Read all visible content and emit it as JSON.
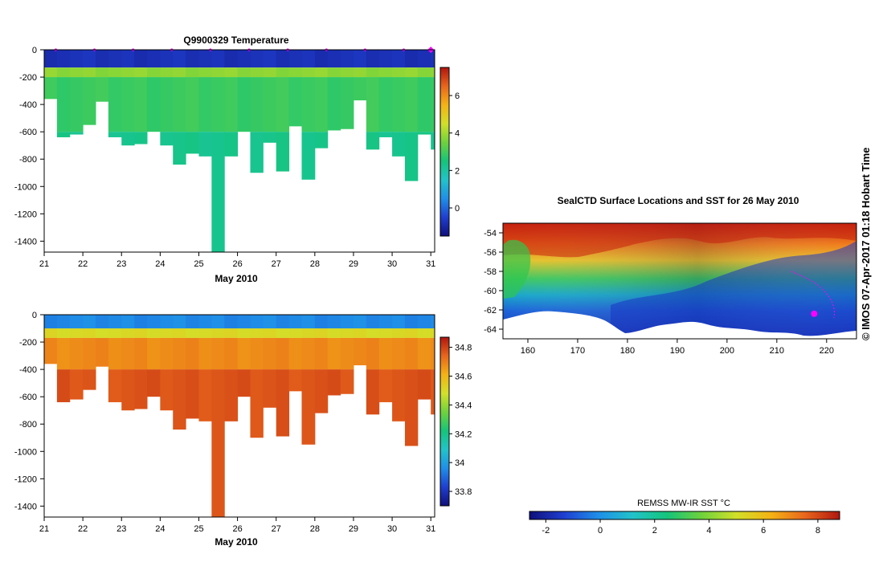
{
  "credit": "©  IMOS 07-Apr-2017 01:18 Hobart Time",
  "colors": {
    "temp_scale": [
      "#10107a",
      "#1f3fd0",
      "#1f8fe8",
      "#22c3c9",
      "#15c47a",
      "#6fd23c",
      "#d2e029",
      "#f4b315",
      "#e8661c",
      "#b0160f"
    ],
    "sal_scale": [
      "#10107a",
      "#1f3fd0",
      "#1f8fe8",
      "#22c3c9",
      "#15c47a",
      "#6fd23c",
      "#d2e029",
      "#f4b315",
      "#e8661c",
      "#b0160f"
    ],
    "surface_marker": "#ff00ff"
  },
  "chart_data": [
    {
      "id": "temperature",
      "type": "heatmap",
      "title": "Q9900329  Temperature",
      "xlabel": "May 2010",
      "ylabel": "",
      "x_ticks": [
        "21",
        "22",
        "23",
        "24",
        "25",
        "26",
        "27",
        "28",
        "29",
        "30",
        "31"
      ],
      "y_ticks": [
        "0",
        "-200",
        "-400",
        "-600",
        "-800",
        "-1000",
        "-1200",
        "-1400"
      ],
      "xlim": [
        21,
        31.1
      ],
      "ylim": [
        -1480,
        0
      ],
      "colorbar_ticks": [
        "0",
        "2",
        "4",
        "6"
      ],
      "colorbar_range": [
        -1.5,
        7.5
      ],
      "profile_times": [
        21,
        21.33,
        21.66,
        22,
        22.33,
        22.66,
        23,
        23.33,
        23.66,
        24,
        24.33,
        24.66,
        25,
        25.33,
        25.66,
        26,
        26.33,
        26.66,
        27,
        27.33,
        27.66,
        28,
        28.33,
        28.66,
        29,
        29.33,
        29.66,
        30,
        30.33,
        30.66,
        31
      ],
      "profile_max_depth": [
        -360,
        -640,
        -620,
        -550,
        -380,
        -640,
        -700,
        -690,
        -600,
        -700,
        -840,
        -760,
        -780,
        -1480,
        -780,
        -600,
        -900,
        -680,
        -890,
        -560,
        -950,
        -720,
        -590,
        -580,
        -370,
        -730,
        -640,
        -780,
        -960,
        -620,
        -730
      ],
      "layers": [
        {
          "depth_top": 0,
          "depth_bottom": -130,
          "value": -0.8
        },
        {
          "depth_top": -130,
          "depth_bottom": -200,
          "value": 3.8
        },
        {
          "depth_top": -200,
          "depth_bottom": -600,
          "value": 2.9
        },
        {
          "depth_top": -600,
          "depth_bottom": -1480,
          "value": 2.3
        }
      ],
      "surface_markers": [
        21.3,
        22.3,
        23.3,
        24.3,
        25.3,
        26.3,
        27.3,
        28.3,
        29.3,
        30.3,
        31
      ]
    },
    {
      "id": "salinity",
      "type": "heatmap",
      "title": "",
      "xlabel": "May 2010",
      "ylabel": "",
      "x_ticks": [
        "21",
        "22",
        "23",
        "24",
        "25",
        "26",
        "27",
        "28",
        "29",
        "30",
        "31"
      ],
      "y_ticks": [
        "0",
        "-200",
        "-400",
        "-600",
        "-800",
        "-1000",
        "-1200",
        "-1400"
      ],
      "xlim": [
        21,
        31.1
      ],
      "ylim": [
        -1480,
        0
      ],
      "colorbar_ticks": [
        "33.8",
        "34",
        "34.2",
        "34.4",
        "34.6",
        "34.8"
      ],
      "colorbar_range": [
        33.7,
        34.87
      ],
      "profile_times": [
        21,
        21.33,
        21.66,
        22,
        22.33,
        22.66,
        23,
        23.33,
        23.66,
        24,
        24.33,
        24.66,
        25,
        25.33,
        25.66,
        26,
        26.33,
        26.66,
        27,
        27.33,
        27.66,
        28,
        28.33,
        28.66,
        29,
        29.33,
        29.66,
        30,
        30.33,
        30.66,
        31
      ],
      "profile_max_depth": [
        -360,
        -640,
        -620,
        -550,
        -380,
        -640,
        -700,
        -690,
        -600,
        -700,
        -840,
        -760,
        -780,
        -1480,
        -780,
        -600,
        -900,
        -680,
        -890,
        -560,
        -950,
        -720,
        -590,
        -580,
        -370,
        -730,
        -640,
        -780,
        -960,
        -620,
        -730
      ],
      "layers": [
        {
          "depth_top": 0,
          "depth_bottom": -100,
          "value": 33.95
        },
        {
          "depth_top": -100,
          "depth_bottom": -170,
          "value": 34.5
        },
        {
          "depth_top": -170,
          "depth_bottom": -400,
          "value": 34.68
        },
        {
          "depth_top": -400,
          "depth_bottom": -1480,
          "value": 34.77
        }
      ]
    },
    {
      "id": "sst_map",
      "type": "heatmap",
      "title": "SealCTD Surface Locations and SST for 26 May 2010",
      "xlabel": "",
      "ylabel": "",
      "x_ticks": [
        "160",
        "170",
        "180",
        "190",
        "200",
        "210",
        "220"
      ],
      "y_ticks": [
        "-54",
        "-56",
        "-58",
        "-60",
        "-62",
        "-64"
      ],
      "xlim": [
        155,
        226
      ],
      "ylim": [
        -65,
        -53
      ],
      "colorbar_title": "REMSS MW-IR SST °C",
      "colorbar_ticks": [
        "-2",
        "0",
        "2",
        "4",
        "6",
        "8"
      ],
      "colorbar_range": [
        -2.6,
        8.8
      ],
      "surface_location": {
        "lon": 217.5,
        "lat": -62.4
      }
    }
  ]
}
